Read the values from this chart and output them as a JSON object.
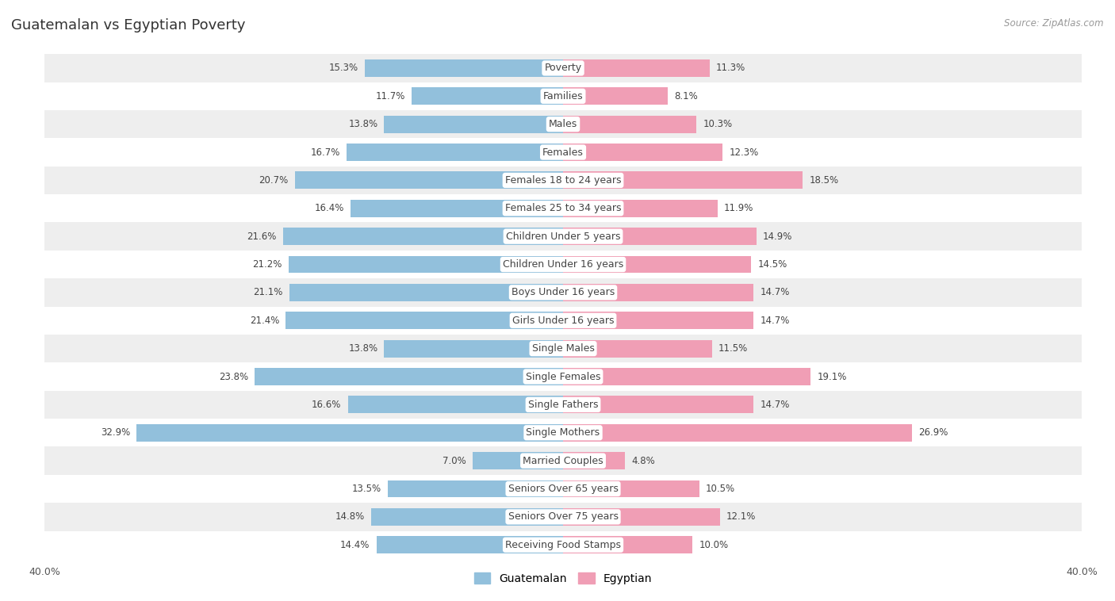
{
  "title": "Guatemalan vs Egyptian Poverty",
  "source": "Source: ZipAtlas.com",
  "categories": [
    "Poverty",
    "Families",
    "Males",
    "Females",
    "Females 18 to 24 years",
    "Females 25 to 34 years",
    "Children Under 5 years",
    "Children Under 16 years",
    "Boys Under 16 years",
    "Girls Under 16 years",
    "Single Males",
    "Single Females",
    "Single Fathers",
    "Single Mothers",
    "Married Couples",
    "Seniors Over 65 years",
    "Seniors Over 75 years",
    "Receiving Food Stamps"
  ],
  "guatemalan": [
    15.3,
    11.7,
    13.8,
    16.7,
    20.7,
    16.4,
    21.6,
    21.2,
    21.1,
    21.4,
    13.8,
    23.8,
    16.6,
    32.9,
    7.0,
    13.5,
    14.8,
    14.4
  ],
  "egyptian": [
    11.3,
    8.1,
    10.3,
    12.3,
    18.5,
    11.9,
    14.9,
    14.5,
    14.7,
    14.7,
    11.5,
    19.1,
    14.7,
    26.9,
    4.8,
    10.5,
    12.1,
    10.0
  ],
  "guatemalan_color": "#92C0DC",
  "egyptian_color": "#F09EB5",
  "background_row_odd": "#EEEEEE",
  "background_row_even": "#FFFFFF",
  "axis_limit": 40.0,
  "bar_height": 0.62,
  "label_fontsize": 9.0,
  "value_fontsize": 8.5,
  "title_fontsize": 13,
  "source_fontsize": 8.5
}
